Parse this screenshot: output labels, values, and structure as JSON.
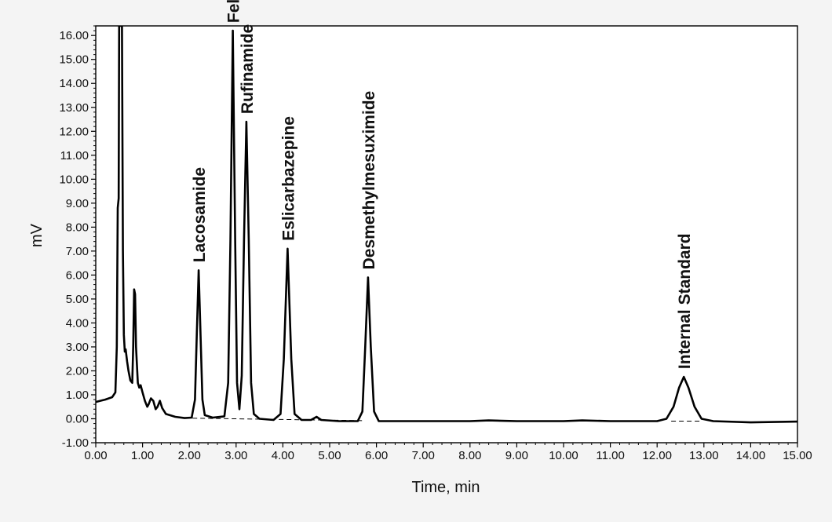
{
  "chart_data": {
    "type": "line",
    "xlabel": "Time, min",
    "ylabel": "mV",
    "xlim": [
      0,
      15
    ],
    "ylim": [
      -1,
      16.4
    ],
    "x_ticks": [
      0,
      1,
      2,
      3,
      4,
      5,
      6,
      7,
      8,
      9,
      10,
      11,
      12,
      13,
      14,
      15
    ],
    "y_ticks": [
      -1,
      0,
      1,
      2,
      3,
      4,
      5,
      6,
      7,
      8,
      9,
      10,
      11,
      12,
      13,
      14,
      15,
      16
    ],
    "x_tick_labels": [
      "0.00",
      "1.00",
      "2.00",
      "3.00",
      "4.00",
      "5.00",
      "6.00",
      "7.00",
      "8.00",
      "9.00",
      "10.00",
      "11.00",
      "12.00",
      "13.00",
      "14.00",
      "15.00"
    ],
    "y_tick_labels": [
      "-1.00",
      "0.00",
      "1.00",
      "2.00",
      "3.00",
      "4.00",
      "5.00",
      "6.00",
      "7.00",
      "8.00",
      "9.00",
      "10.00",
      "11.00",
      "12.00",
      "13.00",
      "14.00",
      "15.00",
      "16.00"
    ],
    "grid": false,
    "series": [
      {
        "color": "#000000",
        "line_style": "solid",
        "points": [
          [
            0.0,
            0.7
          ],
          [
            0.2,
            0.8
          ],
          [
            0.35,
            0.9
          ],
          [
            0.42,
            1.1
          ],
          [
            0.45,
            3
          ],
          [
            0.47,
            8.8
          ],
          [
            0.49,
            9.2
          ],
          [
            0.5,
            16.4
          ],
          [
            0.56,
            16.4
          ],
          [
            0.58,
            7
          ],
          [
            0.6,
            3.5
          ],
          [
            0.62,
            2.8
          ],
          [
            0.64,
            2.9
          ],
          [
            0.67,
            2.4
          ],
          [
            0.7,
            2.0
          ],
          [
            0.74,
            1.6
          ],
          [
            0.78,
            1.5
          ],
          [
            0.8,
            3.0
          ],
          [
            0.82,
            5.4
          ],
          [
            0.84,
            5.2
          ],
          [
            0.86,
            3.0
          ],
          [
            0.9,
            1.5
          ],
          [
            0.93,
            1.3
          ],
          [
            0.96,
            1.4
          ],
          [
            1.0,
            1.1
          ],
          [
            1.05,
            0.75
          ],
          [
            1.1,
            0.5
          ],
          [
            1.13,
            0.6
          ],
          [
            1.18,
            0.85
          ],
          [
            1.23,
            0.75
          ],
          [
            1.28,
            0.4
          ],
          [
            1.32,
            0.5
          ],
          [
            1.37,
            0.75
          ],
          [
            1.42,
            0.45
          ],
          [
            1.5,
            0.2
          ],
          [
            1.7,
            0.08
          ],
          [
            1.9,
            0.03
          ],
          [
            2.05,
            0.05
          ],
          [
            2.12,
            0.8
          ],
          [
            2.16,
            3.5
          ],
          [
            2.2,
            6.2
          ],
          [
            2.24,
            3.5
          ],
          [
            2.28,
            0.8
          ],
          [
            2.33,
            0.15
          ],
          [
            2.5,
            0.05
          ],
          [
            2.75,
            0.1
          ],
          [
            2.83,
            1.5
          ],
          [
            2.88,
            7.5
          ],
          [
            2.93,
            16.2
          ],
          [
            2.98,
            7.5
          ],
          [
            3.02,
            1.5
          ],
          [
            3.07,
            0.4
          ],
          [
            3.12,
            1.8
          ],
          [
            3.17,
            7.5
          ],
          [
            3.22,
            12.4
          ],
          [
            3.27,
            7.5
          ],
          [
            3.32,
            1.5
          ],
          [
            3.38,
            0.2
          ],
          [
            3.5,
            0.0
          ],
          [
            3.8,
            -0.05
          ],
          [
            3.95,
            0.2
          ],
          [
            4.02,
            2.5
          ],
          [
            4.1,
            7.1
          ],
          [
            4.18,
            2.5
          ],
          [
            4.25,
            0.2
          ],
          [
            4.4,
            -0.05
          ],
          [
            4.6,
            -0.05
          ],
          [
            4.72,
            0.08
          ],
          [
            4.82,
            -0.05
          ],
          [
            5.2,
            -0.1
          ],
          [
            5.6,
            -0.1
          ],
          [
            5.7,
            0.3
          ],
          [
            5.76,
            3.0
          ],
          [
            5.82,
            5.9
          ],
          [
            5.88,
            3.0
          ],
          [
            5.95,
            0.3
          ],
          [
            6.05,
            -0.1
          ],
          [
            7.0,
            -0.1
          ],
          [
            8.0,
            -0.1
          ],
          [
            8.4,
            -0.07
          ],
          [
            9.0,
            -0.1
          ],
          [
            10.0,
            -0.1
          ],
          [
            10.4,
            -0.07
          ],
          [
            11.0,
            -0.1
          ],
          [
            12.0,
            -0.1
          ],
          [
            12.2,
            0.0
          ],
          [
            12.35,
            0.5
          ],
          [
            12.47,
            1.3
          ],
          [
            12.57,
            1.75
          ],
          [
            12.67,
            1.3
          ],
          [
            12.8,
            0.5
          ],
          [
            12.95,
            0.0
          ],
          [
            13.2,
            -0.1
          ],
          [
            14.0,
            -0.15
          ],
          [
            15.0,
            -0.12
          ]
        ]
      },
      {
        "color": "#000000",
        "line_style": "dashed",
        "points": [
          [
            1.9,
            0.03
          ],
          [
            5.75,
            -0.08
          ]
        ]
      },
      {
        "color": "#000000",
        "line_style": "dashed",
        "points": [
          [
            12.3,
            -0.1
          ],
          [
            12.95,
            -0.1
          ]
        ]
      }
    ],
    "annotations": [
      {
        "text": "Lacosamide",
        "x": 2.2,
        "y": 6.2
      },
      {
        "text": "Felbamate",
        "x": 2.93,
        "y": 16.2
      },
      {
        "text": "Rufinamide",
        "x": 3.22,
        "y": 12.4
      },
      {
        "text": "Eslicarbazepine",
        "x": 4.1,
        "y": 7.1
      },
      {
        "text": "Desmethylmesuximide",
        "x": 5.82,
        "y": 5.9
      },
      {
        "text": "Internal Standard",
        "x": 12.57,
        "y": 1.75
      }
    ]
  }
}
